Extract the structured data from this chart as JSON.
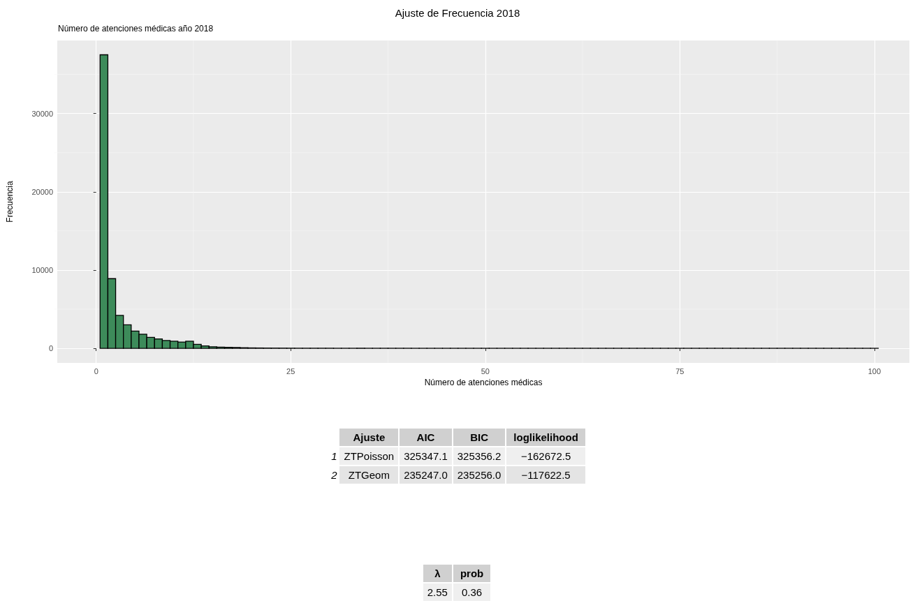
{
  "chart_data": [
    {
      "type": "histogram",
      "title": "Ajuste de Frecuencia 2018",
      "subtitle": "Número de atenciones médicas año 2018",
      "xlabel": "Número de atenciones médicas",
      "ylabel": "Frecuencia",
      "color": "#3d8b5a",
      "bins": [
        0.5,
        1.5,
        2.5,
        3.5,
        4.5,
        5.5,
        6.5,
        7.5,
        8.5,
        9.5,
        10.5,
        11.5,
        12.5,
        13.5,
        14.5,
        15.5,
        16.5,
        17.5,
        18.5,
        19.5,
        20.5,
        21.5,
        22.5,
        23.5,
        24.5,
        25.5,
        26.5,
        27.5,
        28.5,
        29.5,
        30.5,
        31.5,
        32.5,
        33.5,
        34.5,
        35.5,
        36.5,
        37.5,
        38.5,
        39.5,
        40.5,
        41.5,
        42.5,
        43.5,
        44.5,
        45.5,
        46.5,
        47.5,
        48.5,
        49.5,
        50.5,
        51.5,
        52.5,
        53.5,
        54.5,
        55.5,
        56.5,
        57.5,
        58.5,
        59.5,
        60.5,
        61.5,
        62.5,
        63.5,
        64.5,
        65.5,
        66.5,
        67.5,
        68.5,
        69.5,
        70.5,
        71.5,
        72.5,
        73.5,
        74.5,
        75.5,
        76.5,
        77.5,
        78.5,
        79.5,
        80.5,
        81.5,
        82.5,
        83.5,
        84.5,
        85.5,
        86.5,
        87.5,
        88.5,
        89.5,
        90.5,
        91.5,
        92.5,
        93.5,
        94.5,
        95.5,
        96.5,
        97.5,
        98.5,
        99.5,
        100.5
      ],
      "values": [
        37500,
        8900,
        4200,
        3000,
        2200,
        1800,
        1400,
        1200,
        1000,
        900,
        800,
        900,
        500,
        300,
        200,
        150,
        120,
        100,
        70,
        50,
        40,
        30,
        25,
        20,
        15,
        10,
        10,
        10,
        10,
        10,
        5,
        5,
        5,
        5,
        5,
        5,
        5,
        5,
        5,
        5,
        2,
        2,
        2,
        2,
        2,
        2,
        2,
        2,
        2,
        2,
        2,
        2,
        2,
        2,
        2,
        2,
        2,
        2,
        2,
        2,
        2,
        2,
        2,
        2,
        2,
        2,
        2,
        2,
        2,
        2,
        2,
        2,
        2,
        2,
        2,
        2,
        2,
        2,
        2,
        2,
        2,
        2,
        2,
        2,
        2,
        2,
        2,
        2,
        2,
        2,
        2,
        2,
        2,
        2,
        2,
        2,
        2,
        2,
        2,
        2
      ],
      "xlim": [
        -5,
        104.5
      ],
      "xticks": [
        0,
        25,
        50,
        75,
        100
      ],
      "ylim": [
        -1870,
        39330
      ],
      "yticks": [
        0,
        10000,
        20000,
        30000
      ],
      "grid": true
    },
    {
      "type": "other",
      "categories": [
        "Ajuste",
        "AIC",
        "BIC",
        "loglikelihood"
      ],
      "y_categories": [
        "1",
        "2"
      ],
      "cell_labels": [
        [
          "ZTPoisson",
          "325347.1",
          "325356.2",
          "−162672.5"
        ],
        [
          "ZTGeom",
          "235247.0",
          "235256.0",
          "−117622.5"
        ]
      ]
    },
    {
      "type": "other",
      "categories": [
        "λ",
        "prob"
      ],
      "y_categories": [
        null
      ],
      "cell_labels": [
        [
          "2.55",
          "0.36"
        ]
      ]
    }
  ]
}
